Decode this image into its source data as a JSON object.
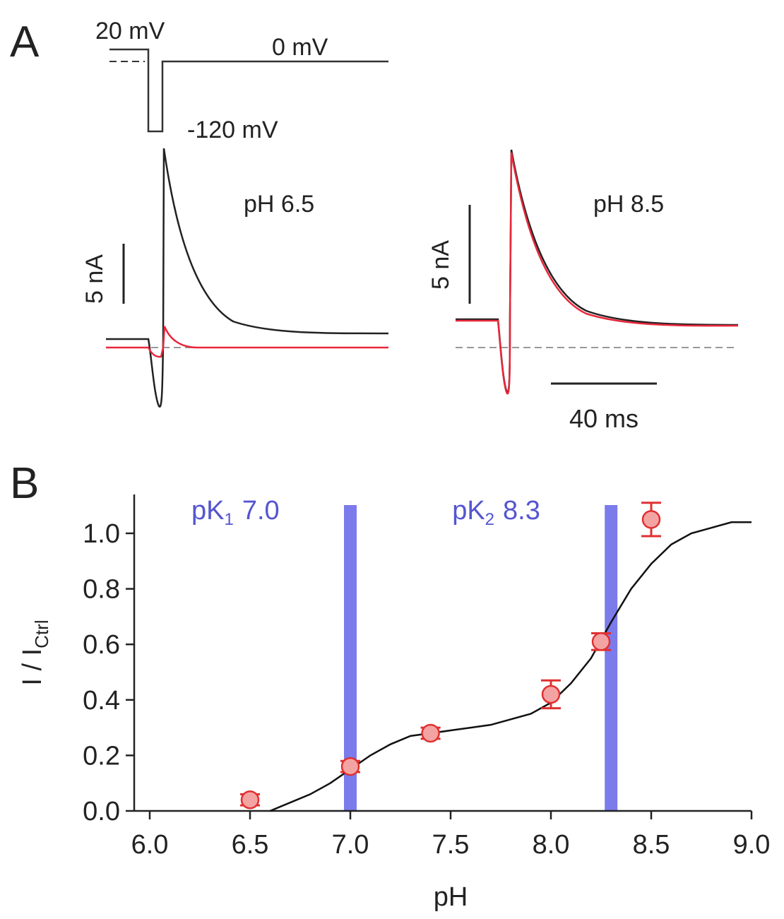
{
  "panel_labels": [
    "A",
    "B"
  ],
  "panel_a": {
    "protocol_labels": [
      "20 mV",
      "0 mV",
      "-120 mV"
    ],
    "left_condition": "pH 6.5",
    "right_condition": "pH 8.5",
    "current_scale_left": "5 nA",
    "current_scale_right": "5 nA",
    "time_scale": "40 ms"
  },
  "chart_data": {
    "type": "scatter",
    "x_label": "pH",
    "y_label": {
      "main": "I / I",
      "sub": "Ctrl"
    },
    "xlim": [
      6.0,
      9.0
    ],
    "ylim": [
      0.0,
      1.14
    ],
    "xticks": [
      {
        "value": 6,
        "label": "6.0"
      },
      {
        "value": 6.5,
        "label": "6.5"
      },
      {
        "value": 7,
        "label": "7.0"
      },
      {
        "value": 7.5,
        "label": "7.5"
      },
      {
        "value": 8,
        "label": "8.0"
      },
      {
        "value": 8.5,
        "label": "8.5"
      },
      {
        "value": 9,
        "label": "9.0"
      }
    ],
    "yticks": [
      {
        "value": 0,
        "label": "0.0"
      },
      0.2,
      0.4,
      0.6,
      0.8,
      {
        "value": 1,
        "label": "1.0"
      }
    ],
    "bands": [
      {
        "x": 7.0,
        "color": "#7b7bec",
        "label": {
          "main": "pK",
          "sub": "1",
          "rest": "7.0"
        }
      },
      {
        "x": 8.3,
        "color": "#7b7bec",
        "label": {
          "main": "pK",
          "sub": "2",
          "rest": "8.3"
        }
      }
    ],
    "series": [
      {
        "type": "scatter",
        "color": "#e03030",
        "fill": "#f4a3a3",
        "x": [
          6.5,
          7.0,
          7.4,
          8.0,
          8.25,
          8.5
        ],
        "values": [
          0.04,
          0.16,
          0.28,
          0.42,
          0.61,
          1.05
        ],
        "errors": [
          0.02,
          0.02,
          0.02,
          0.05,
          0.03,
          0.06
        ]
      },
      {
        "type": "line",
        "color": "#111111",
        "x": [
          6.6,
          6.7,
          6.8,
          6.9,
          7.0,
          7.1,
          7.2,
          7.3,
          7.4,
          7.5,
          7.6,
          7.7,
          7.8,
          7.9,
          8.0,
          8.1,
          8.2,
          8.3,
          8.4,
          8.5,
          8.6,
          8.7,
          8.8,
          8.9,
          9.0
        ],
        "values": [
          0.0,
          0.03,
          0.06,
          0.1,
          0.15,
          0.2,
          0.24,
          0.27,
          0.28,
          0.29,
          0.3,
          0.31,
          0.33,
          0.35,
          0.39,
          0.46,
          0.55,
          0.68,
          0.8,
          0.89,
          0.96,
          1.0,
          1.02,
          1.04,
          1.04
        ]
      }
    ]
  }
}
